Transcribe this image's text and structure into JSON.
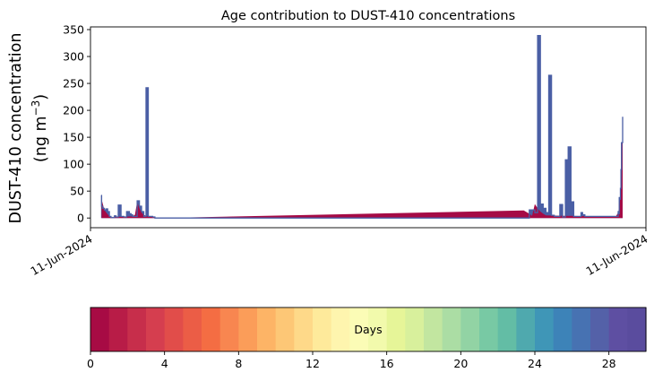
{
  "chart_data": {
    "type": "area",
    "title": "Age contribution to DUST-410 concentrations",
    "ylabel_line1": "DUST-410 concentration",
    "ylabel_line2": "(ng m",
    "ylabel_exp": "−3",
    "ylabel_close": ")",
    "xlabel": "",
    "ylim": [
      -18,
      355
    ],
    "yticks": [
      0,
      50,
      100,
      150,
      200,
      250,
      300,
      350
    ],
    "xlim": [
      0,
      100
    ],
    "xtick_labels": [
      "11-Jun-2024",
      "11-Jun-2024"
    ],
    "grid": false,
    "series_outline_color": "#4a5fa5",
    "young_age_fill_color": "#a50a45",
    "concentration": {
      "x": [
        1.9,
        2.0,
        2.2,
        2.5,
        2.8,
        3.1,
        3.4,
        3.7,
        4.0,
        4.3,
        4.6,
        5.0,
        5.5,
        6.0,
        6.5,
        7.0,
        7.3,
        7.6,
        8.0,
        8.4,
        8.8,
        9.2,
        9.6,
        10.0,
        10.4,
        10.8,
        11.2,
        11.6,
        12.0,
        12.4,
        12.8,
        13.2,
        13.6,
        14.0,
        14.4,
        14.8,
        15.2,
        15.6,
        16.0,
        17.0,
        18.0,
        19.0,
        20.0,
        21.0,
        50.0,
        78.0,
        79.0,
        80.0,
        80.5,
        81.0,
        81.5,
        82.0,
        82.5,
        83.0,
        83.5,
        84.0,
        84.5,
        85.0,
        85.5,
        86.0,
        86.5,
        87.0,
        87.5,
        88.0,
        88.3,
        88.6,
        89.0,
        89.5,
        90.0,
        90.5,
        91.0,
        91.5,
        92.0,
        92.5,
        93.0,
        93.2,
        93.4,
        93.7,
        94.0,
        94.3,
        94.6,
        94.8,
        95.0,
        95.1,
        95.2,
        95.3,
        95.4,
        95.5,
        95.6,
        95.8
      ],
      "y": [
        42,
        22,
        18,
        15,
        17,
        12,
        3,
        1,
        1,
        4,
        2,
        24,
        3,
        2,
        12,
        8,
        6,
        3,
        3,
        32,
        22,
        12,
        3,
        242,
        3,
        3,
        2,
        0,
        0,
        0,
        0,
        0,
        0,
        0,
        0,
        0,
        0,
        0,
        0,
        0,
        0,
        0,
        0,
        0,
        0,
        0,
        15,
        10,
        339,
        26,
        18,
        10,
        265,
        5,
        3,
        3,
        25,
        2,
        108,
        132,
        30,
        3,
        3,
        3,
        10,
        6,
        3,
        3,
        3,
        3,
        3,
        3,
        3,
        3,
        3,
        3,
        3,
        3,
        3,
        3,
        3,
        3,
        12,
        8,
        38,
        35,
        55,
        90,
        140,
        188
      ]
    },
    "young_age_fill": {
      "x": [
        2.0,
        2.5,
        3.0,
        3.5,
        7.5,
        8.0,
        8.4,
        8.8,
        9.2,
        9.6,
        10.0,
        10.4,
        10.8,
        11.2,
        11.6,
        12.0,
        78.0,
        79.0,
        79.5,
        80.0,
        80.5,
        81.0,
        81.5,
        82.0,
        94.5,
        95.0,
        95.2,
        95.4,
        95.6,
        95.8
      ],
      "y": [
        35,
        15,
        8,
        2,
        3,
        6,
        30,
        18,
        10,
        6,
        4,
        3,
        3,
        2,
        1,
        0,
        14,
        8,
        4,
        26,
        18,
        12,
        8,
        5,
        2,
        10,
        20,
        40,
        80,
        165
      ]
    },
    "colorbar": {
      "label": "Days",
      "range": [
        0,
        30
      ],
      "ticks": [
        0,
        4,
        8,
        12,
        16,
        20,
        24,
        28
      ],
      "colors": [
        "#a70b44",
        "#b81c47",
        "#c72e4b",
        "#d53e4f",
        "#e14d4a",
        "#eb5d46",
        "#f46d43",
        "#f88650",
        "#fb9d59",
        "#fdb466",
        "#fdc776",
        "#fed989",
        "#feea9b",
        "#fef5ae",
        "#fbfcb6",
        "#f2faac",
        "#e6f598",
        "#d8f09c",
        "#c2e6a0",
        "#abdda4",
        "#92d3a4",
        "#78c9a4",
        "#63bda5",
        "#4fa9ae",
        "#3f96b7",
        "#3d83b8",
        "#4772b2",
        "#5461a8",
        "#5e4fa2",
        "#5a4c9e"
      ]
    }
  }
}
